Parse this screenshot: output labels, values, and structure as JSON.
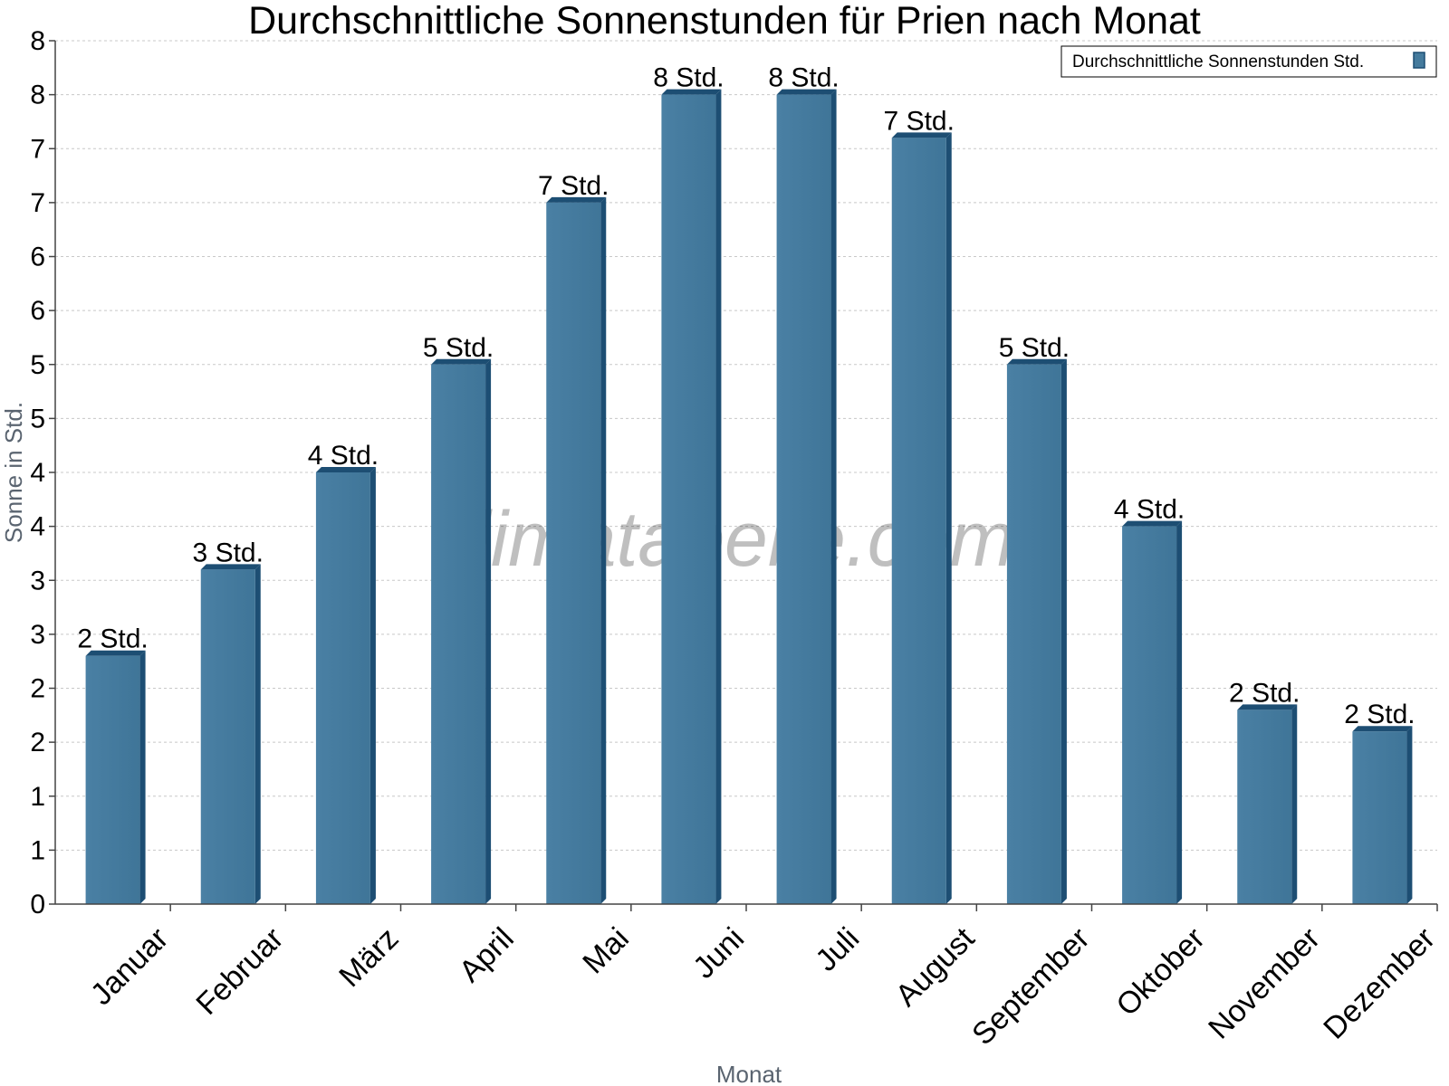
{
  "chart_data": {
    "type": "bar",
    "title": "Durchschnittliche Sonnenstunden für Prien nach Monat",
    "xlabel": "Monat",
    "ylabel": "Sonne in Std.",
    "categories": [
      "Januar",
      "Februar",
      "März",
      "April",
      "Mai",
      "Juni",
      "Juli",
      "August",
      "September",
      "Oktober",
      "November",
      "Dezember"
    ],
    "series": [
      {
        "name": "Durchschnittliche Sonnenstunden Std.",
        "values": [
          2.3,
          3.1,
          4.0,
          5.0,
          6.5,
          7.5,
          7.5,
          7.1,
          5.0,
          3.5,
          1.8,
          1.6
        ],
        "labels": [
          "2 Std.",
          "3 Std.",
          "4 Std.",
          "5 Std.",
          "7 Std.",
          "8 Std.",
          "8 Std.",
          "7 Std.",
          "5 Std.",
          "4 Std.",
          "2 Std.",
          "2 Std."
        ]
      }
    ],
    "yticks": [
      {
        "value": 0,
        "label": "0"
      },
      {
        "value": 0.5,
        "label": "1"
      },
      {
        "value": 1,
        "label": "1"
      },
      {
        "value": 1.5,
        "label": "2"
      },
      {
        "value": 2,
        "label": "2"
      },
      {
        "value": 2.5,
        "label": "3"
      },
      {
        "value": 3,
        "label": "3"
      },
      {
        "value": 3.5,
        "label": "4"
      },
      {
        "value": 4,
        "label": "4"
      },
      {
        "value": 4.5,
        "label": "5"
      },
      {
        "value": 5,
        "label": "5"
      },
      {
        "value": 5.5,
        "label": "6"
      },
      {
        "value": 6,
        "label": "6"
      },
      {
        "value": 6.5,
        "label": "7"
      },
      {
        "value": 7,
        "label": "7"
      },
      {
        "value": 7.5,
        "label": "8"
      },
      {
        "value": 8,
        "label": "8"
      }
    ],
    "ylim": [
      0,
      8
    ],
    "grid": true,
    "legend_position": "top-right",
    "bar_color": "#457b9d",
    "bar_side_color": "#1d4e73",
    "watermark": "klimatabelle.com"
  }
}
